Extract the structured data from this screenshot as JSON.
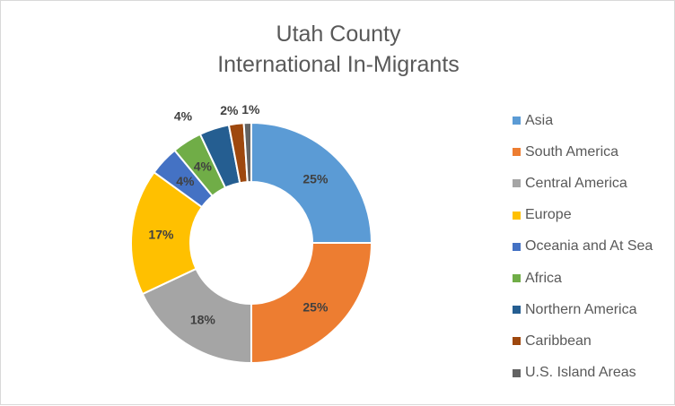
{
  "window": {
    "title_line1": "Utah County",
    "title_line2": "International In-Migrants"
  },
  "chart_data": {
    "type": "donut",
    "title": "Utah County International In-Migrants",
    "legend_position": "right",
    "categories": [
      "Asia",
      "South America",
      "Central America",
      "Europe",
      "Oceania and At Sea",
      "Africa",
      "Northern America",
      "Caribbean",
      "U.S. Island Areas"
    ],
    "values": [
      25,
      25,
      18,
      17,
      4,
      4,
      4,
      2,
      1
    ],
    "labels": [
      "25%",
      "25%",
      "18%",
      "17%",
      "4%",
      "4%",
      "4%",
      "2%",
      "1%"
    ],
    "colors": [
      "#5b9bd5",
      "#ed7d31",
      "#a5a5a5",
      "#ffc000",
      "#4472c4",
      "#70ad47",
      "#255e91",
      "#9e480e",
      "#636363"
    ]
  }
}
